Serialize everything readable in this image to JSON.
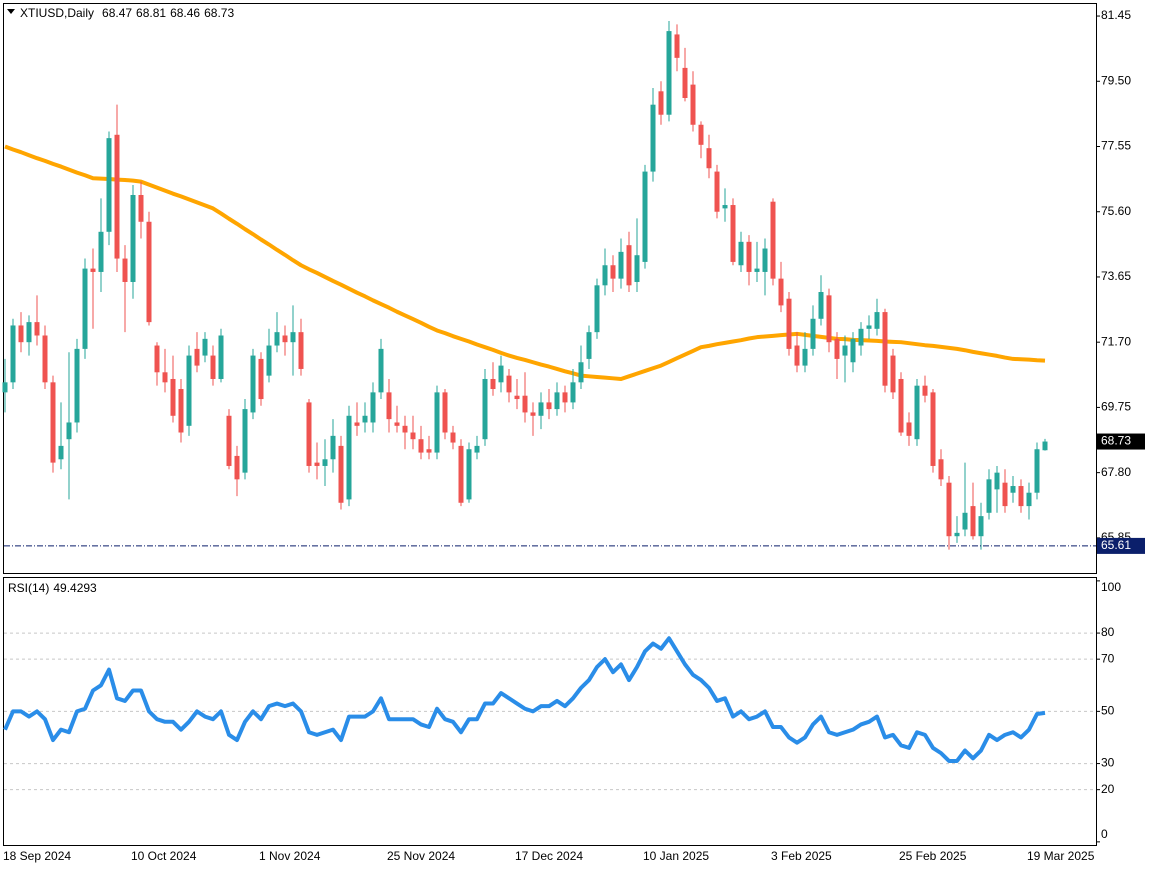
{
  "chart_data": [
    {
      "type": "candlestick",
      "title": "XTIUSD,Daily",
      "up_color": "#26a69a",
      "down_color": "#ef5350",
      "ylim": [
        64.8,
        81.81
      ],
      "yticks": [
        81.45,
        {
          "value": 79.5,
          "label": "79.50"
        },
        77.55,
        {
          "value": 75.6,
          "label": "75.60"
        },
        73.65,
        {
          "value": 71.7,
          "label": "71.70"
        },
        69.75,
        {
          "value": 67.8,
          "label": "67.80"
        },
        65.85
      ],
      "hline": {
        "value": 65.61,
        "color": "#0b1f6b"
      },
      "categories": [
        "18 Sep 2024",
        null,
        null,
        null,
        null,
        null,
        null,
        null,
        null,
        null,
        null,
        null,
        null,
        null,
        null,
        null,
        "10 Oct 2024",
        null,
        null,
        null,
        null,
        null,
        null,
        null,
        null,
        null,
        null,
        null,
        null,
        null,
        null,
        null,
        "1 Nov 2024",
        null,
        null,
        null,
        null,
        null,
        null,
        null,
        null,
        null,
        null,
        null,
        null,
        null,
        null,
        null,
        "25 Nov 2024",
        null,
        null,
        null,
        null,
        null,
        null,
        null,
        null,
        null,
        null,
        null,
        null,
        null,
        null,
        null,
        "17 Dec 2024",
        null,
        null,
        null,
        null,
        null,
        null,
        null,
        null,
        null,
        null,
        null,
        null,
        null,
        null,
        null,
        "10 Jan 2025",
        null,
        null,
        null,
        null,
        null,
        null,
        null,
        null,
        null,
        null,
        null,
        null,
        null,
        null,
        null,
        "3 Feb 2025",
        null,
        null,
        null,
        null,
        null,
        null,
        null,
        null,
        null,
        null,
        null,
        null,
        null,
        null,
        null,
        "25 Feb 2025",
        null,
        null,
        null,
        null,
        null,
        null,
        null,
        null,
        null,
        null,
        null,
        null,
        null,
        null,
        null,
        "19 Mar 2025",
        null,
        null
      ],
      "ohlc": [
        [
          70.2,
          71.2,
          69.6,
          70.5
        ],
        [
          70.5,
          72.4,
          70.3,
          72.2
        ],
        [
          72.2,
          72.6,
          71.4,
          71.7
        ],
        [
          71.7,
          72.5,
          71.3,
          72.3
        ],
        [
          72.3,
          73.1,
          71.6,
          71.9
        ],
        [
          71.9,
          72.2,
          70.3,
          70.5
        ],
        [
          70.5,
          70.7,
          67.8,
          68.1
        ],
        [
          68.2,
          69.9,
          67.9,
          68.6
        ],
        [
          68.8,
          71.4,
          67.0,
          69.3
        ],
        [
          69.3,
          71.8,
          69.0,
          71.5
        ],
        [
          71.5,
          74.2,
          71.2,
          73.9
        ],
        [
          73.9,
          74.5,
          72.1,
          73.8
        ],
        [
          73.8,
          76.0,
          73.2,
          75.0
        ],
        [
          75.0,
          78.0,
          74.6,
          77.8
        ],
        [
          77.9,
          78.8,
          73.8,
          74.2
        ],
        [
          74.2,
          74.6,
          72.0,
          73.5
        ],
        [
          73.5,
          76.4,
          73.0,
          76.1
        ],
        [
          76.1,
          76.5,
          74.8,
          75.3
        ],
        [
          75.3,
          75.6,
          72.2,
          72.3
        ],
        [
          71.6,
          71.7,
          70.4,
          70.8
        ],
        [
          70.8,
          71.5,
          70.2,
          70.5
        ],
        [
          70.6,
          71.3,
          69.3,
          69.5
        ],
        [
          70.3,
          70.6,
          68.7,
          69.0
        ],
        [
          69.2,
          71.6,
          68.9,
          71.3
        ],
        [
          71.5,
          72.0,
          70.8,
          71.0
        ],
        [
          71.3,
          72.0,
          71.1,
          71.8
        ],
        [
          71.3,
          71.6,
          70.4,
          70.6
        ],
        [
          70.6,
          72.1,
          70.5,
          71.9
        ],
        [
          69.5,
          69.7,
          67.9,
          68.0
        ],
        [
          68.3,
          68.6,
          67.1,
          67.6
        ],
        [
          67.8,
          70.0,
          67.6,
          69.7
        ],
        [
          69.6,
          71.5,
          69.4,
          71.3
        ],
        [
          71.2,
          71.4,
          69.8,
          70.0
        ],
        [
          70.7,
          72.1,
          70.5,
          71.6
        ],
        [
          71.6,
          72.6,
          71.4,
          72.0
        ],
        [
          71.9,
          72.2,
          71.3,
          71.7
        ],
        [
          71.7,
          72.8,
          70.7,
          72.0
        ],
        [
          72.0,
          72.4,
          70.7,
          70.9
        ],
        [
          69.9,
          70.0,
          67.8,
          68.0
        ],
        [
          68.1,
          68.7,
          67.6,
          68.0
        ],
        [
          68.0,
          68.8,
          67.4,
          68.2
        ],
        [
          68.2,
          69.4,
          67.8,
          68.9
        ],
        [
          68.6,
          68.9,
          66.7,
          66.9
        ],
        [
          67.0,
          69.8,
          66.8,
          69.5
        ],
        [
          69.3,
          69.9,
          68.9,
          69.2
        ],
        [
          69.3,
          69.9,
          69.0,
          69.5
        ],
        [
          69.3,
          70.5,
          69.0,
          70.2
        ],
        [
          70.2,
          71.8,
          70.0,
          71.5
        ],
        [
          70.2,
          70.6,
          69.0,
          69.4
        ],
        [
          69.3,
          69.8,
          69.0,
          69.2
        ],
        [
          69.2,
          69.5,
          68.5,
          69.0
        ],
        [
          69.0,
          69.5,
          68.5,
          68.8
        ],
        [
          68.8,
          69.2,
          68.2,
          68.4
        ],
        [
          68.5,
          68.9,
          68.2,
          68.4
        ],
        [
          68.4,
          70.4,
          68.2,
          70.2
        ],
        [
          70.2,
          70.3,
          68.8,
          69.0
        ],
        [
          69.0,
          69.2,
          68.5,
          68.7
        ],
        [
          68.6,
          68.8,
          66.8,
          66.9
        ],
        [
          67.0,
          68.7,
          66.9,
          68.5
        ],
        [
          68.4,
          68.9,
          68.2,
          68.6
        ],
        [
          68.8,
          70.9,
          68.6,
          70.6
        ],
        [
          70.6,
          71.1,
          70.1,
          70.3
        ],
        [
          70.5,
          71.3,
          70.2,
          71.0
        ],
        [
          70.7,
          70.9,
          69.9,
          70.2
        ],
        [
          70.1,
          70.6,
          69.7,
          70.0
        ],
        [
          70.1,
          70.8,
          69.3,
          69.6
        ],
        [
          69.6,
          69.9,
          68.9,
          69.5
        ],
        [
          69.5,
          70.2,
          69.1,
          69.9
        ],
        [
          69.9,
          70.3,
          69.4,
          69.7
        ],
        [
          69.7,
          70.5,
          69.5,
          70.2
        ],
        [
          70.2,
          70.4,
          69.6,
          69.9
        ],
        [
          69.9,
          70.9,
          69.7,
          70.5
        ],
        [
          70.5,
          71.6,
          70.3,
          71.1
        ],
        [
          71.2,
          72.2,
          70.9,
          72.0
        ],
        [
          72.0,
          73.6,
          71.8,
          73.4
        ],
        [
          73.4,
          74.5,
          73.1,
          74.0
        ],
        [
          74.0,
          74.3,
          73.2,
          73.6
        ],
        [
          73.6,
          74.8,
          73.3,
          74.4
        ],
        [
          74.6,
          75.0,
          73.2,
          73.4
        ],
        [
          73.5,
          75.4,
          73.2,
          74.3
        ],
        [
          74.1,
          77.0,
          73.9,
          76.8
        ],
        [
          76.8,
          79.3,
          76.5,
          78.8
        ],
        [
          79.2,
          79.5,
          78.2,
          78.5
        ],
        [
          78.5,
          81.3,
          78.3,
          81.0
        ],
        [
          80.9,
          81.2,
          79.8,
          80.2
        ],
        [
          79.9,
          80.5,
          78.9,
          79.0
        ],
        [
          79.4,
          79.8,
          78.0,
          78.2
        ],
        [
          78.2,
          78.3,
          77.2,
          77.6
        ],
        [
          77.5,
          77.9,
          76.6,
          76.9
        ],
        [
          76.8,
          77.0,
          75.4,
          75.6
        ],
        [
          75.7,
          76.3,
          75.3,
          75.8
        ],
        [
          75.8,
          76.0,
          74.0,
          74.1
        ],
        [
          74.0,
          75.0,
          73.8,
          74.7
        ],
        [
          74.7,
          74.9,
          73.4,
          73.8
        ],
        [
          73.8,
          74.7,
          73.5,
          73.9
        ],
        [
          73.8,
          74.8,
          73.1,
          74.5
        ],
        [
          75.9,
          76.0,
          73.4,
          73.6
        ],
        [
          73.6,
          74.1,
          72.6,
          72.8
        ],
        [
          73.0,
          73.2,
          71.3,
          71.5
        ],
        [
          71.6,
          72.0,
          70.8,
          71.0
        ],
        [
          71.0,
          72.0,
          70.8,
          71.5
        ],
        [
          71.5,
          72.8,
          71.3,
          72.4
        ],
        [
          72.4,
          73.7,
          72.2,
          73.2
        ],
        [
          73.1,
          73.3,
          71.4,
          71.7
        ],
        [
          71.8,
          72.0,
          70.6,
          71.2
        ],
        [
          71.3,
          71.9,
          70.5,
          71.6
        ],
        [
          71.1,
          72.0,
          70.8,
          71.8
        ],
        [
          71.6,
          72.3,
          71.3,
          72.1
        ],
        [
          72.1,
          72.5,
          71.8,
          72.2
        ],
        [
          72.1,
          73.0,
          71.9,
          72.6
        ],
        [
          72.6,
          72.7,
          70.2,
          70.4
        ],
        [
          71.3,
          71.5,
          70.0,
          70.2
        ],
        [
          70.6,
          70.8,
          68.9,
          69.0
        ],
        [
          69.3,
          69.6,
          68.6,
          68.9
        ],
        [
          68.8,
          70.6,
          68.6,
          70.4
        ],
        [
          70.4,
          70.7,
          69.9,
          70.1
        ],
        [
          70.2,
          70.3,
          67.8,
          68.0
        ],
        [
          68.2,
          68.5,
          67.4,
          67.6
        ],
        [
          67.5,
          67.7,
          65.5,
          65.9
        ],
        [
          65.9,
          66.5,
          65.7,
          66.0
        ],
        [
          66.1,
          68.1,
          65.9,
          66.6
        ],
        [
          66.8,
          67.5,
          65.8,
          65.9
        ],
        [
          65.9,
          66.9,
          65.5,
          66.5
        ],
        [
          66.6,
          67.9,
          66.4,
          67.6
        ],
        [
          67.3,
          68.0,
          66.6,
          67.8
        ],
        [
          67.5,
          67.9,
          66.6,
          66.8
        ],
        [
          67.2,
          67.7,
          66.9,
          67.4
        ],
        [
          67.4,
          67.6,
          66.6,
          66.8
        ],
        [
          66.8,
          67.5,
          66.4,
          67.2
        ],
        [
          67.2,
          68.7,
          67.0,
          68.5
        ],
        [
          68.47,
          68.81,
          68.46,
          68.73
        ]
      ],
      "overlay": {
        "color": "#ffa500",
        "values": [
          77.55,
          77.46,
          77.38,
          77.29,
          77.2,
          77.12,
          77.03,
          76.95,
          76.86,
          76.77,
          76.69,
          76.6,
          76.59,
          76.58,
          76.56,
          76.55,
          76.53,
          76.5,
          76.41,
          76.32,
          76.23,
          76.14,
          76.06,
          75.97,
          75.88,
          75.79,
          75.7,
          75.55,
          75.39,
          75.24,
          75.08,
          74.93,
          74.77,
          74.62,
          74.46,
          74.31,
          74.15,
          74.0,
          73.88,
          73.77,
          73.65,
          73.53,
          73.42,
          73.3,
          73.18,
          73.07,
          72.95,
          72.84,
          72.73,
          72.61,
          72.5,
          72.39,
          72.28,
          72.16,
          72.05,
          71.97,
          71.88,
          71.8,
          71.72,
          71.63,
          71.55,
          71.47,
          71.38,
          71.3,
          71.23,
          71.17,
          71.1,
          71.03,
          70.97,
          70.9,
          70.83,
          70.77,
          70.7,
          70.68,
          70.66,
          70.64,
          70.62,
          70.6,
          70.68,
          70.76,
          70.84,
          70.92,
          71.0,
          71.11,
          71.22,
          71.33,
          71.44,
          71.55,
          71.59,
          71.64,
          71.68,
          71.72,
          71.76,
          71.81,
          71.85,
          71.87,
          71.89,
          71.91,
          71.93,
          71.95,
          71.92,
          71.89,
          71.86,
          71.83,
          71.8,
          71.79,
          71.77,
          71.76,
          71.75,
          71.74,
          71.72,
          71.71,
          71.7,
          71.67,
          71.64,
          71.61,
          71.59,
          71.56,
          71.53,
          71.5,
          71.46,
          71.41,
          71.37,
          71.33,
          71.29,
          71.24,
          71.2,
          71.19,
          71.18,
          71.16,
          71.15
        ]
      }
    },
    {
      "type": "line",
      "title": "RSI(14)",
      "color": "#2a8de8",
      "ylim": [
        -1.2,
        101.1
      ],
      "yticks": [
        0,
        20,
        30,
        50,
        70,
        80,
        100
      ],
      "levels": [
        20,
        30,
        50,
        70,
        80
      ],
      "values": [
        43,
        50,
        50,
        48,
        50,
        47,
        39,
        43,
        42,
        50,
        51,
        58,
        60,
        66,
        55,
        54,
        58,
        58,
        50,
        47,
        46,
        46,
        43,
        46,
        50,
        48,
        47,
        50,
        41,
        39,
        46,
        50,
        47,
        52,
        53,
        52,
        53,
        50,
        42,
        41,
        42,
        43,
        39,
        48,
        48,
        48,
        50,
        55,
        47,
        47,
        47,
        47,
        45,
        44,
        51,
        47,
        46,
        42,
        47,
        47,
        53,
        53,
        57,
        55,
        53,
        51,
        50,
        52,
        52,
        54,
        52,
        55,
        59,
        62,
        67,
        70,
        65,
        68,
        62,
        67,
        73,
        76,
        74,
        78,
        73,
        68,
        64,
        62,
        59,
        54,
        55,
        48,
        50,
        47,
        48,
        50,
        44,
        44,
        40,
        38,
        40,
        45,
        48,
        42,
        41,
        42,
        43,
        45,
        46,
        48,
        40,
        41,
        37,
        36,
        42,
        41,
        36,
        34,
        31,
        31,
        35,
        32,
        35,
        41,
        39,
        41,
        42,
        40,
        43,
        49,
        49.4293
      ]
    }
  ]
}
